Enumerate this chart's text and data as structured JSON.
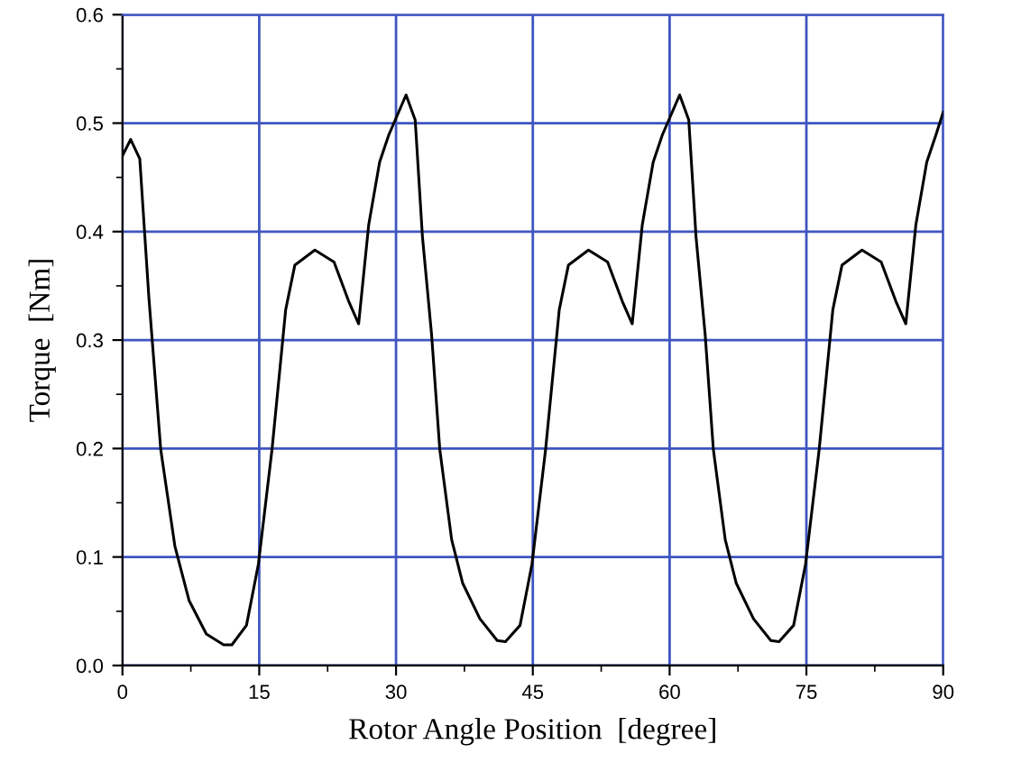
{
  "chart_data": {
    "type": "line",
    "xlabel": "Rotor Angle Position  [degree]",
    "ylabel": "Torque  [Nm]",
    "x": [
      0,
      0.9,
      1.9,
      2.9,
      4.2,
      5.75,
      7.3,
      9.2,
      11.1,
      12.0,
      13.6,
      14.9,
      16.4,
      17.9,
      18.9,
      21.1,
      23.2,
      24.8,
      25.9,
      27.0,
      28.2,
      29.2,
      31.1,
      32.1,
      32.9,
      33.9,
      34.8,
      36.1,
      37.3,
      39.2,
      41.1,
      42.0,
      43.6,
      44.9,
      46.4,
      47.9,
      48.9,
      51.1,
      53.2,
      54.8,
      55.9,
      57.0,
      58.2,
      59.2,
      61.1,
      62.1,
      62.9,
      63.9,
      64.8,
      66.1,
      67.3,
      69.2,
      71.1,
      72.0,
      73.6,
      74.9,
      76.4,
      77.9,
      78.9,
      81.1,
      83.2,
      84.8,
      85.9,
      87.0,
      88.2,
      89.2,
      90
    ],
    "series": [
      {
        "color": "#000000",
        "values": [
          0.47,
          0.485,
          0.467,
          0.339,
          0.199,
          0.11,
          0.06,
          0.029,
          0.019,
          0.019,
          0.037,
          0.093,
          0.199,
          0.328,
          0.369,
          0.383,
          0.372,
          0.336,
          0.315,
          0.406,
          0.464,
          0.489,
          0.526,
          0.503,
          0.395,
          0.305,
          0.199,
          0.116,
          0.076,
          0.043,
          0.023,
          0.022,
          0.037,
          0.093,
          0.199,
          0.328,
          0.369,
          0.383,
          0.372,
          0.336,
          0.315,
          0.406,
          0.464,
          0.489,
          0.526,
          0.503,
          0.395,
          0.305,
          0.199,
          0.116,
          0.076,
          0.043,
          0.023,
          0.022,
          0.037,
          0.093,
          0.199,
          0.328,
          0.369,
          0.383,
          0.372,
          0.336,
          0.315,
          0.406,
          0.464,
          0.489,
          0.51
        ]
      }
    ],
    "xlim": [
      0,
      90
    ],
    "ylim": [
      0,
      0.6
    ],
    "xticks": [
      0,
      {
        "value": 7.5,
        "label": null
      },
      15,
      {
        "value": 22.5,
        "label": null
      },
      30,
      {
        "value": 37.5,
        "label": null
      },
      45,
      {
        "value": 52.5,
        "label": null
      },
      60,
      {
        "value": 67.5,
        "label": null
      },
      75,
      {
        "value": 82.5,
        "label": null
      },
      90
    ],
    "yticks": [
      {
        "value": 0,
        "label": "0.0"
      },
      {
        "value": 0.05,
        "label": null
      },
      0.1,
      {
        "value": 0.15,
        "label": null
      },
      0.2,
      {
        "value": 0.25,
        "label": null
      },
      0.3,
      {
        "value": 0.35,
        "label": null
      },
      0.4,
      {
        "value": 0.45,
        "label": null
      },
      0.5,
      {
        "value": 0.55,
        "label": null
      },
      0.6
    ],
    "grid": true,
    "line_style": "solid",
    "marker": "none"
  }
}
